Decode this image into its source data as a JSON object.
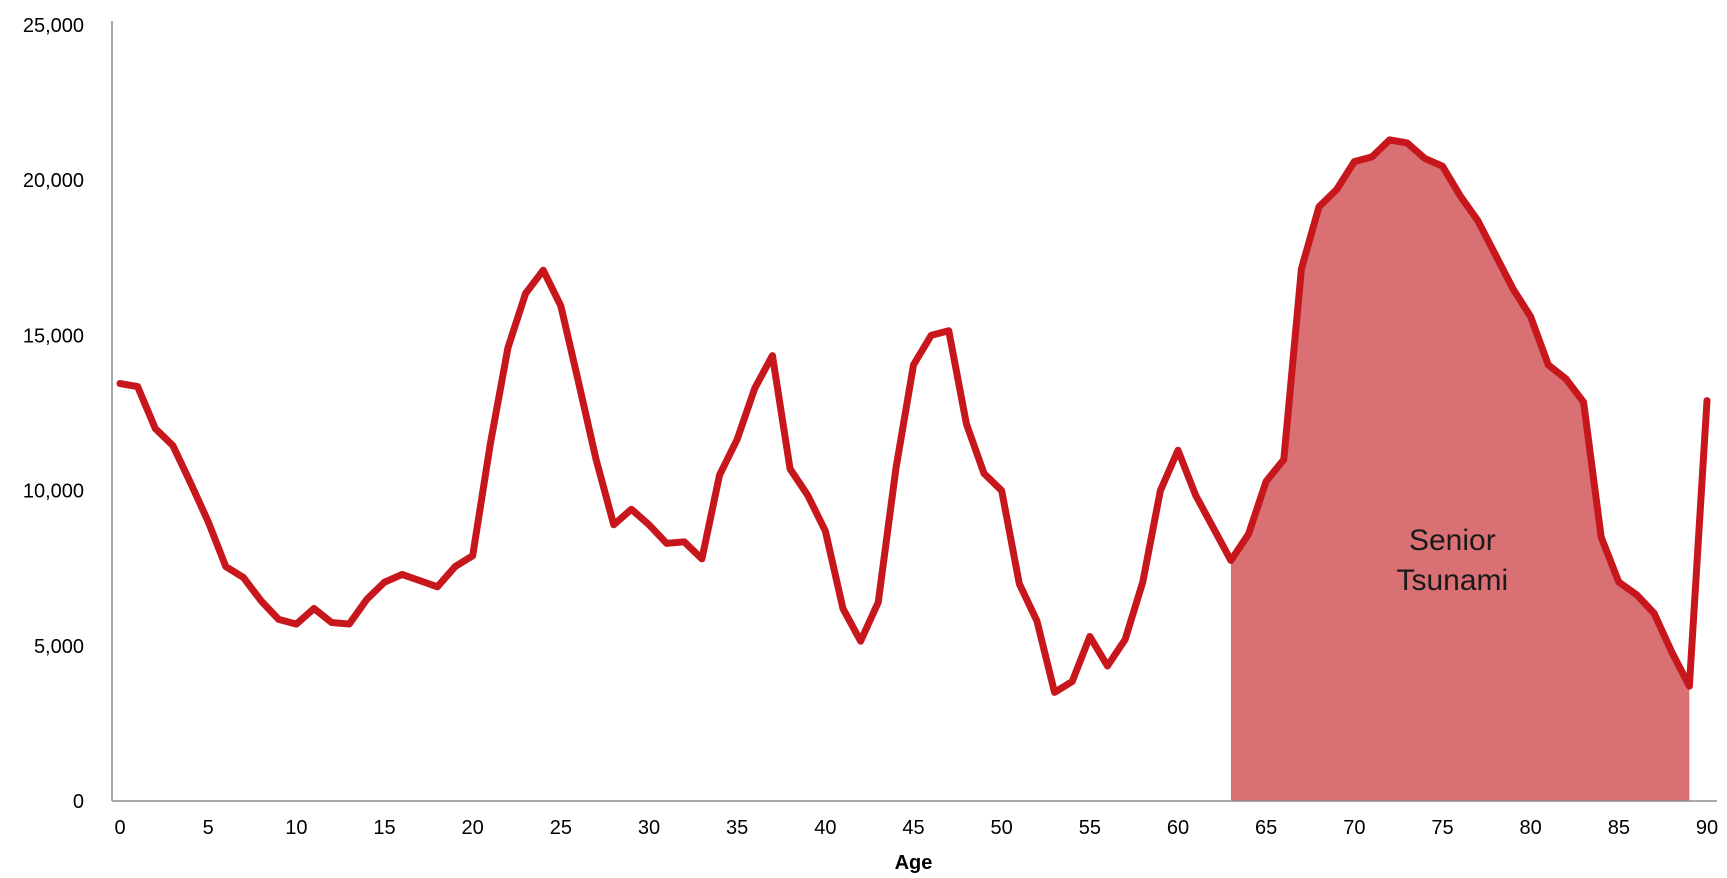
{
  "chart_data": {
    "type": "line",
    "title": "",
    "xlabel": "Age",
    "ylabel": "",
    "xlim": [
      0,
      90
    ],
    "ylim": [
      0,
      25000
    ],
    "x_ticks": [
      0,
      5,
      10,
      15,
      20,
      25,
      30,
      35,
      40,
      45,
      50,
      55,
      60,
      65,
      70,
      75,
      80,
      85,
      90
    ],
    "x_tick_labels": [
      "0",
      "5",
      "10",
      "15",
      "20",
      "25",
      "30",
      "35",
      "40",
      "45",
      "50",
      "55",
      "60",
      "65",
      "70",
      "75",
      "80",
      "85",
      "90"
    ],
    "y_ticks": [
      0,
      5000,
      10000,
      15000,
      20000,
      25000
    ],
    "y_tick_labels": [
      "0",
      "5,000",
      "10,000",
      "15,000",
      "20,000",
      "25,000"
    ],
    "grid": false,
    "legend": "none",
    "line_color": "#c8161d",
    "fill_color": "#d87074",
    "x": [
      0,
      1,
      2,
      3,
      4,
      5,
      6,
      7,
      8,
      9,
      10,
      11,
      12,
      13,
      14,
      15,
      16,
      17,
      18,
      19,
      20,
      21,
      22,
      23,
      24,
      25,
      26,
      27,
      28,
      29,
      30,
      31,
      32,
      33,
      34,
      35,
      36,
      37,
      38,
      39,
      40,
      41,
      42,
      43,
      44,
      45,
      46,
      47,
      48,
      49,
      50,
      51,
      52,
      53,
      54,
      55,
      56,
      57,
      58,
      59,
      60,
      61,
      62,
      63,
      64,
      65,
      66,
      67,
      68,
      69,
      70,
      71,
      72,
      73,
      74,
      75,
      76,
      77,
      78,
      79,
      80,
      81,
      82,
      83,
      84,
      85,
      86,
      87,
      88,
      89,
      90
    ],
    "series": [
      {
        "values": [
          13450,
          13350,
          12000,
          11450,
          10250,
          9000,
          7550,
          7200,
          6450,
          5850,
          5700,
          6200,
          5750,
          5700,
          6500,
          7050,
          7300,
          7100,
          6900,
          7550,
          7900,
          11500,
          14600,
          16350,
          17100,
          15950,
          13500,
          11000,
          8900,
          9400,
          8900,
          8300,
          8350,
          7800,
          10500,
          11650,
          13300,
          14350,
          10700,
          9850,
          8700,
          6200,
          5150,
          6400,
          10700,
          14050,
          15000,
          15150,
          12150,
          10550,
          10000,
          7000,
          5800,
          3500,
          3850,
          5300,
          4350,
          5200,
          7050,
          10000,
          11300,
          9850,
          8800,
          7750,
          8600,
          10300,
          11000,
          17150,
          19150,
          19700,
          20600,
          20750,
          21300,
          21200,
          20700,
          20450,
          19500,
          18700,
          17600,
          16500,
          15600,
          14050,
          13600,
          12850,
          8500,
          7050,
          6650,
          6050,
          4800,
          3700,
          12900
        ]
      }
    ],
    "highlight": {
      "label_lines": [
        "Senior",
        "Tsunami"
      ],
      "x_start": 63,
      "x_end": 89
    }
  }
}
